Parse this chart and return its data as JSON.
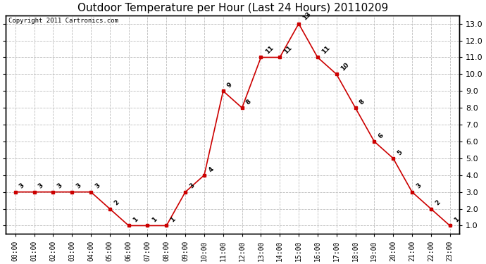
{
  "title": "Outdoor Temperature per Hour (Last 24 Hours) 20110209",
  "copyright_text": "Copyright 2011 Cartronics.com",
  "hours": [
    "00:00",
    "01:00",
    "02:00",
    "03:00",
    "04:00",
    "05:00",
    "06:00",
    "07:00",
    "08:00",
    "09:00",
    "10:00",
    "11:00",
    "12:00",
    "13:00",
    "14:00",
    "15:00",
    "16:00",
    "17:00",
    "18:00",
    "19:00",
    "20:00",
    "21:00",
    "22:00",
    "23:00"
  ],
  "values": [
    3,
    3,
    3,
    3,
    3,
    2,
    1,
    1,
    1,
    3,
    4,
    9,
    8,
    11,
    11,
    13,
    11,
    10,
    8,
    6,
    5,
    3,
    2,
    1
  ],
  "line_color": "#cc0000",
  "marker_color": "#cc0000",
  "bg_color": "#ffffff",
  "grid_color": "#bbbbbb",
  "ylim_min": 0.5,
  "ylim_max": 13.5,
  "yticks": [
    1.0,
    2.0,
    3.0,
    4.0,
    5.0,
    6.0,
    7.0,
    8.0,
    9.0,
    10.0,
    11.0,
    12.0,
    13.0
  ],
  "title_fontsize": 11,
  "annot_fontsize": 6.5,
  "tick_fontsize": 7,
  "copyright_fontsize": 6.5
}
